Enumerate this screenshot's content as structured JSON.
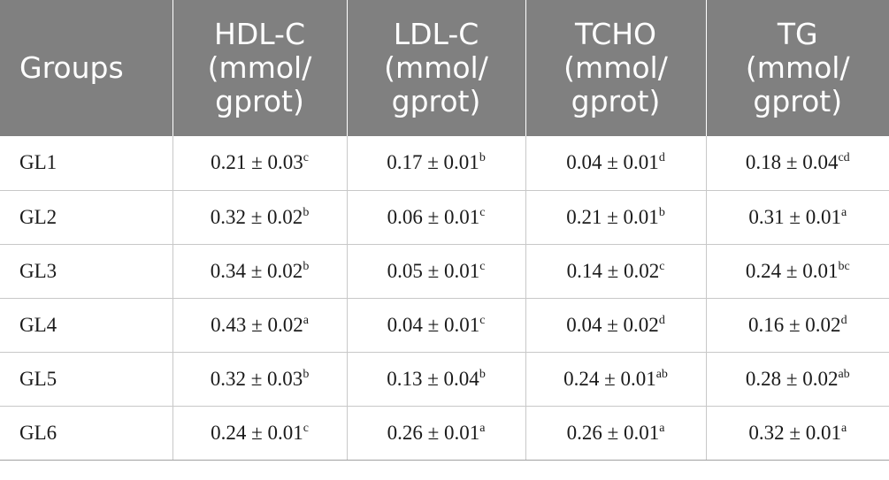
{
  "table": {
    "headers": [
      {
        "lines": [
          "Groups"
        ]
      },
      {
        "lines": [
          "HDL-C",
          "(mmol/",
          "gprot)"
        ]
      },
      {
        "lines": [
          "LDL-C",
          "(mmol/",
          "gprot)"
        ]
      },
      {
        "lines": [
          "TCHO",
          "(mmol/",
          "gprot)"
        ]
      },
      {
        "lines": [
          "TG",
          "(mmol/",
          "gprot)"
        ]
      }
    ],
    "rows": [
      {
        "group": "GL1",
        "cells": [
          {
            "value": "0.21 ± 0.03",
            "sup": "c"
          },
          {
            "value": "0.17 ± 0.01",
            "sup": "b"
          },
          {
            "value": "0.04 ± 0.01",
            "sup": "d"
          },
          {
            "value": "0.18 ± 0.04",
            "sup": "cd"
          }
        ]
      },
      {
        "group": "GL2",
        "cells": [
          {
            "value": "0.32 ± 0.02",
            "sup": "b"
          },
          {
            "value": "0.06 ± 0.01",
            "sup": "c"
          },
          {
            "value": "0.21 ± 0.01",
            "sup": "b"
          },
          {
            "value": "0.31 ± 0.01",
            "sup": "a"
          }
        ]
      },
      {
        "group": "GL3",
        "cells": [
          {
            "value": "0.34 ± 0.02",
            "sup": "b"
          },
          {
            "value": "0.05 ± 0.01",
            "sup": "c"
          },
          {
            "value": "0.14 ± 0.02",
            "sup": "c"
          },
          {
            "value": "0.24 ± 0.01",
            "sup": "bc"
          }
        ]
      },
      {
        "group": "GL4",
        "cells": [
          {
            "value": "0.43 ± 0.02",
            "sup": "a"
          },
          {
            "value": "0.04 ± 0.01",
            "sup": "c"
          },
          {
            "value": "0.04 ± 0.02",
            "sup": "d"
          },
          {
            "value": "0.16 ± 0.02",
            "sup": "d"
          }
        ]
      },
      {
        "group": "GL5",
        "cells": [
          {
            "value": "0.32 ± 0.03",
            "sup": "b"
          },
          {
            "value": "0.13 ± 0.04",
            "sup": "b"
          },
          {
            "value": "0.24 ± 0.01",
            "sup": "ab"
          },
          {
            "value": "0.28 ± 0.02",
            "sup": "ab"
          }
        ]
      },
      {
        "group": "GL6",
        "cells": [
          {
            "value": "0.24 ± 0.01",
            "sup": "c"
          },
          {
            "value": "0.26 ± 0.01",
            "sup": "a"
          },
          {
            "value": "0.26 ± 0.01",
            "sup": "a"
          },
          {
            "value": "0.32 ± 0.01",
            "sup": "a"
          }
        ]
      }
    ]
  },
  "colors": {
    "header_bg": "#808080",
    "header_text": "#ffffff",
    "grid": "#c8c8c8",
    "body_text": "#1a1a1a"
  }
}
